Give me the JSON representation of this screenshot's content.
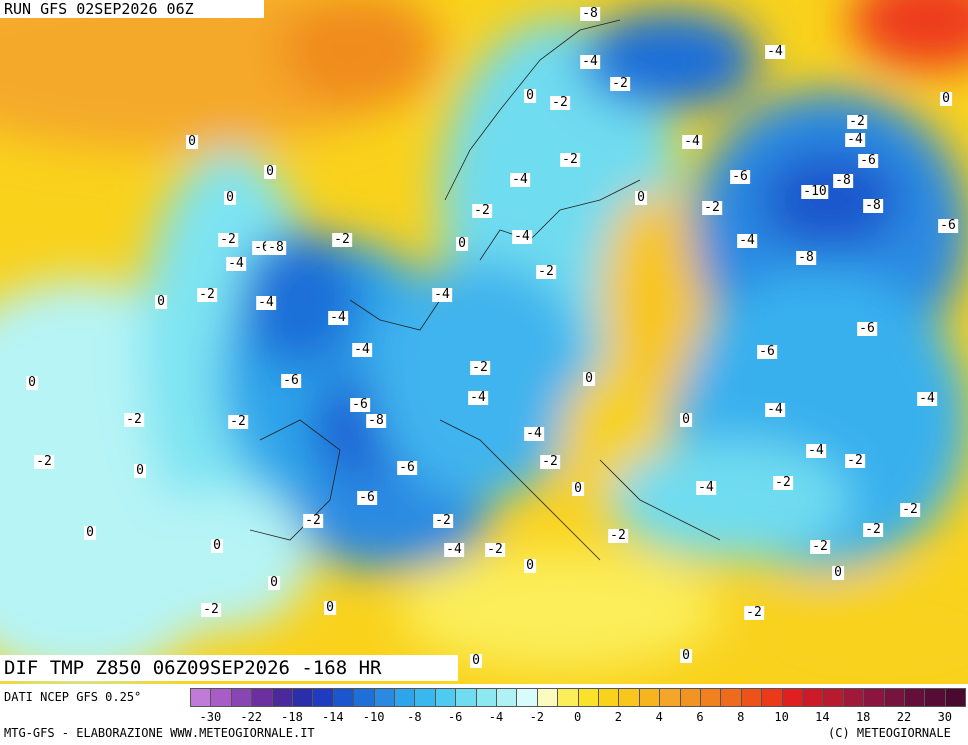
{
  "header": {
    "run": "RUN GFS 02SEP2026 06Z",
    "title": "DIF TMP Z850 06Z09SEP2026 -168 HR"
  },
  "footer": {
    "source": "DATI NCEP GFS 0.25°",
    "credit": "MTG-GFS - ELABORAZIONE WWW.METEOGIORNALE.IT",
    "copyright": "(C) METEOGIORNALE"
  },
  "map_labels": [
    -8,
    -4,
    -4,
    -2,
    0,
    -2,
    0,
    -2,
    0,
    -4,
    -4,
    -2,
    -6,
    0,
    -6,
    -4,
    -8,
    -10,
    0,
    0,
    -2,
    -2,
    -8,
    -6,
    -2,
    -2,
    0,
    -4,
    -4,
    -6,
    -8,
    -4,
    -8,
    -2,
    0,
    -2,
    -4,
    -4,
    -4,
    -6,
    -4,
    -6,
    -2,
    0,
    -6,
    0,
    -4,
    -6,
    -4,
    -4,
    -2,
    -2,
    -8,
    0,
    -4,
    -4,
    -2,
    -2,
    -2,
    -6,
    0,
    -2,
    -4,
    0,
    -6,
    -2,
    -2,
    -2,
    0,
    -2,
    -2,
    0,
    -4,
    -2,
    -2,
    0,
    0,
    0,
    -2,
    0,
    -2,
    0,
    0
  ],
  "legend": {
    "ticks": [
      -30,
      -22,
      -18,
      -14,
      -10,
      -8,
      -6,
      -4,
      -2,
      0,
      2,
      4,
      6,
      8,
      10,
      14,
      18,
      22,
      30
    ],
    "colors": [
      "#c07ad8",
      "#a85cc8",
      "#8a45b4",
      "#6b2fa0",
      "#4a2a9a",
      "#2a2ea8",
      "#1f3cc0",
      "#1c56cc",
      "#1f6fd8",
      "#2a8ae2",
      "#2ea4ea",
      "#38b8ee",
      "#4fcaf0",
      "#6fdcf0",
      "#8ee8f2",
      "#aef2f6",
      "#d8fbfb",
      "#fbfbc0",
      "#fbee5a",
      "#fae22a",
      "#f9d21c",
      "#f8c61c",
      "#f6b41e",
      "#f5a62a",
      "#f29424",
      "#f08020",
      "#ee6a1c",
      "#ec521a",
      "#ea3a1a",
      "#e02020",
      "#cc1a28",
      "#b81a30",
      "#a0183a",
      "#8a1640",
      "#76143e",
      "#640f3a",
      "#560c34",
      "#4a0a30"
    ]
  }
}
